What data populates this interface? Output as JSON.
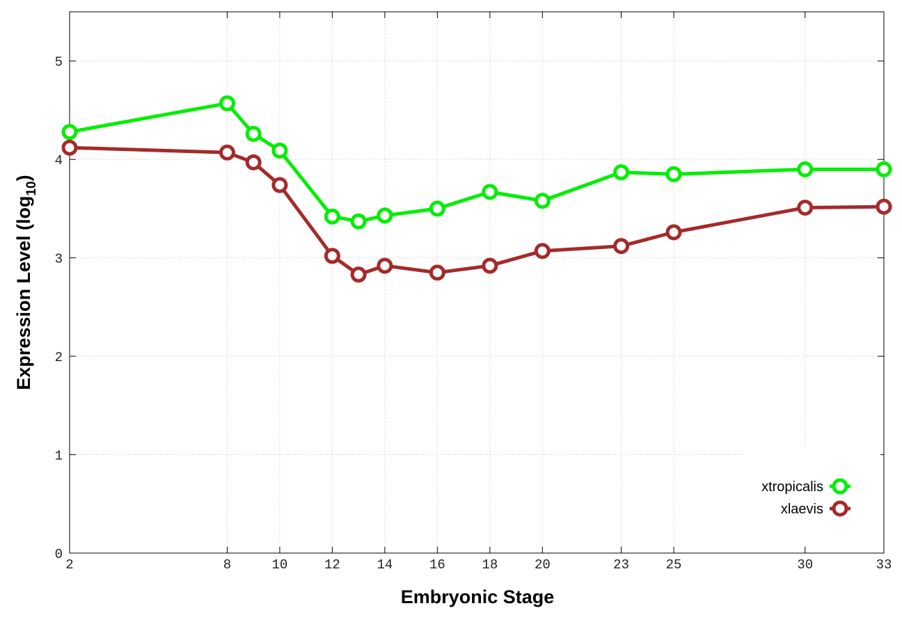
{
  "chart_data": {
    "type": "line",
    "x_label": "Embryonic Stage",
    "y_label": [
      "Expression Level (log",
      "10",
      ")"
    ],
    "x": [
      2,
      8,
      9,
      10,
      12,
      13,
      14,
      16,
      18,
      20,
      23,
      25,
      30,
      33
    ],
    "series": [
      {
        "name": "xtropicalis",
        "color": "#00ee00",
        "values": [
          4.28,
          4.57,
          4.26,
          4.09,
          3.42,
          3.37,
          3.43,
          3.5,
          3.67,
          3.58,
          3.87,
          3.85,
          3.9,
          3.9
        ]
      },
      {
        "name": "xlaevis",
        "color": "#a52a2a",
        "values": [
          4.12,
          4.07,
          3.97,
          3.74,
          3.02,
          2.83,
          2.92,
          2.85,
          2.92,
          3.07,
          3.12,
          3.26,
          3.51,
          3.52
        ]
      }
    ],
    "xlim": [
      2,
      33
    ],
    "xticks": [
      2,
      8,
      10,
      12,
      14,
      16,
      18,
      20,
      23,
      25,
      30,
      33
    ],
    "ylim": [
      0,
      5.5
    ],
    "yticks": [
      0,
      1,
      2,
      3,
      4,
      5
    ],
    "grid": true,
    "legend": "lower right"
  }
}
